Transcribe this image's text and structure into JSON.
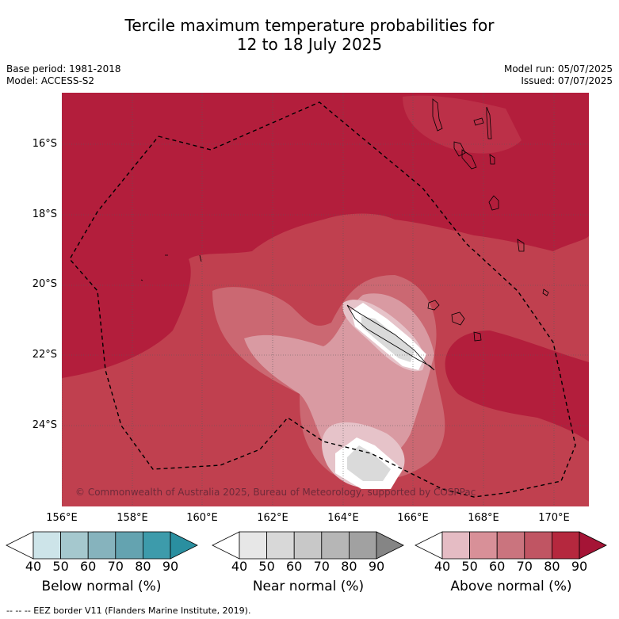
{
  "title_line1": "Tercile maximum temperature probabilities for",
  "title_line2": "12 to 18 July 2025",
  "base_period": "Base period: 1981-2018",
  "model": "Model: ACCESS-S2",
  "model_run": "Model run: 05/07/2025",
  "issued": "Issued: 07/07/2025",
  "lat_labels": [
    "16°S",
    "18°S",
    "20°S",
    "22°S",
    "24°S"
  ],
  "lon_labels": [
    "156°E",
    "158°E",
    "160°E",
    "162°E",
    "164°E",
    "166°E",
    "168°E",
    "170°E"
  ],
  "copyright": "© Commonwealth of Australia 2025, Bureau of Meteorology, supported by COSPPac",
  "colorbars": [
    {
      "label": "Below normal (%)",
      "ticks": [
        "40",
        "50",
        "60",
        "70",
        "80",
        "90"
      ],
      "colors": [
        "#ffffff",
        "#cde4e9",
        "#a5c8ce",
        "#86b3bd",
        "#64a3b0",
        "#3d9bab",
        "#2a8fa0"
      ]
    },
    {
      "label": "Near normal (%)",
      "ticks": [
        "40",
        "50",
        "60",
        "70",
        "80",
        "90"
      ],
      "colors": [
        "#ffffff",
        "#e7e7e7",
        "#d8d8d8",
        "#c8c8c8",
        "#b6b6b6",
        "#a1a1a1",
        "#858585"
      ]
    },
    {
      "label": "Above normal (%)",
      "ticks": [
        "40",
        "50",
        "60",
        "70",
        "80",
        "90"
      ],
      "colors": [
        "#ffffff",
        "#e5bcc4",
        "#d89098",
        "#ca747e",
        "#c05563",
        "#b5283e",
        "#a51436"
      ]
    }
  ],
  "footer": "-- -- -- EEZ border V11 (Flanders Marine Institute, 2019)."
}
